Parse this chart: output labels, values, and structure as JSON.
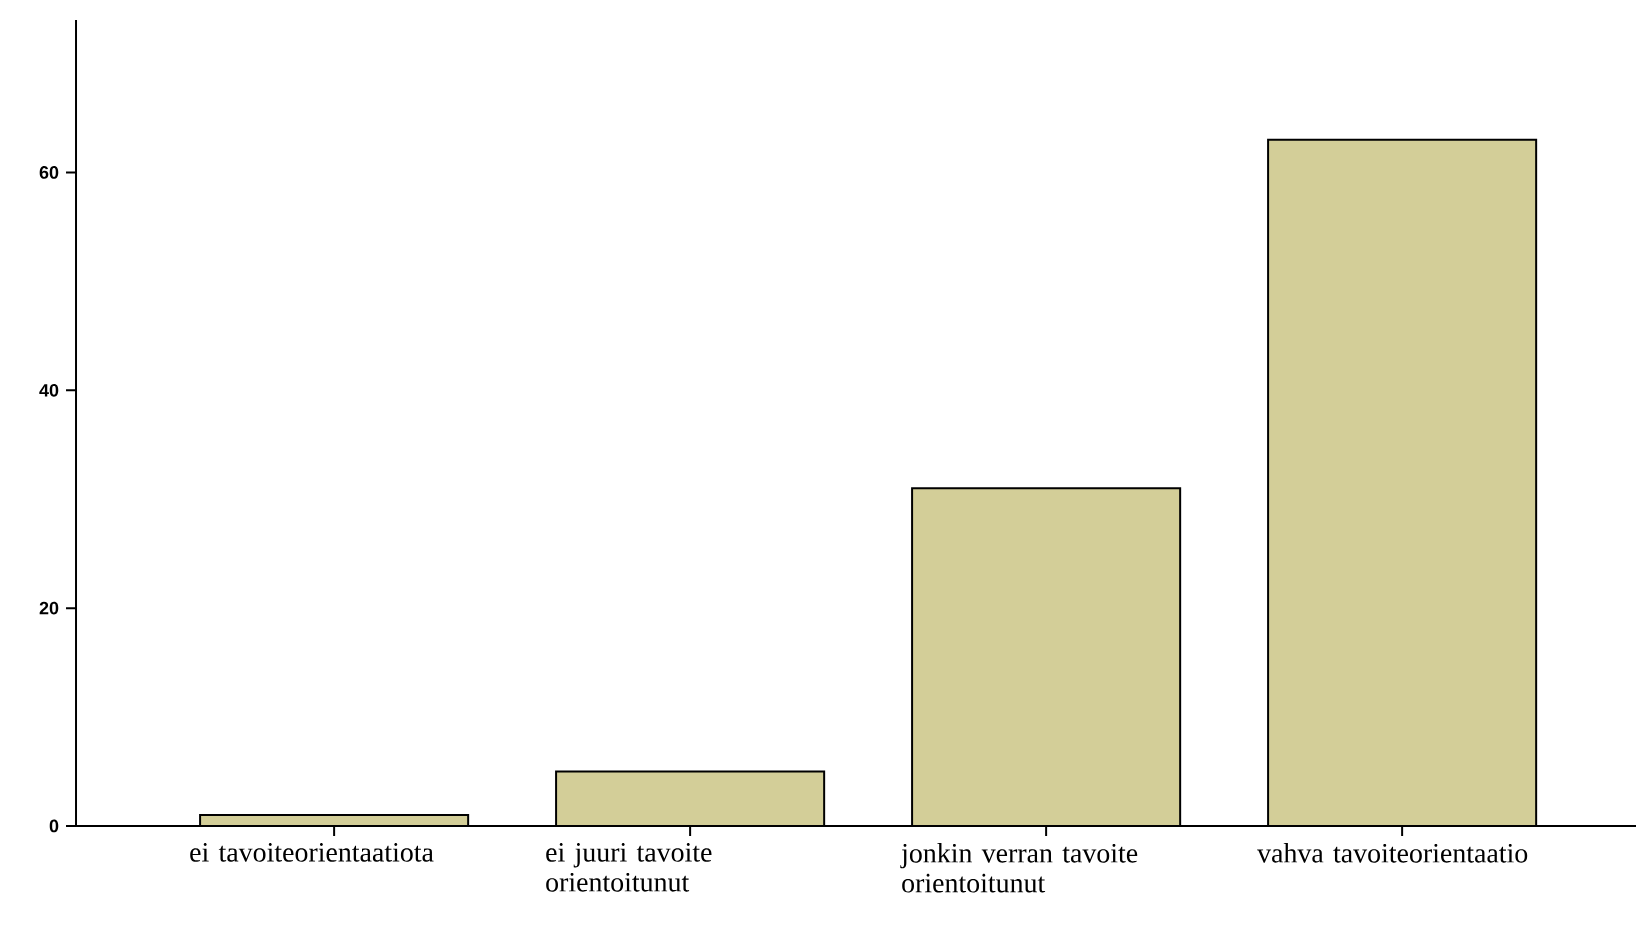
{
  "chart_data": {
    "type": "bar",
    "categories": [
      "ei tavoiteorientaatiota",
      "ei juuri tavoite orientoitunut",
      "jonkin verran tavoite orientoitunut",
      "vahva tavoiteorientaatio"
    ],
    "values": [
      1,
      5,
      31,
      63
    ],
    "color": "#d3ce98",
    "ylim": [
      0,
      74
    ],
    "yticks": [
      0,
      20,
      40,
      60
    ],
    "grid": false
  }
}
